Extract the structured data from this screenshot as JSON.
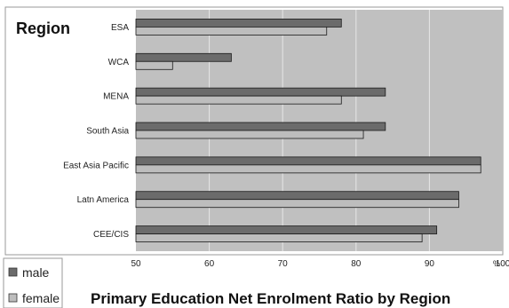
{
  "chart_data": {
    "type": "bar",
    "orientation": "horizontal",
    "title": "Primary Education Net Enrolment Ratio by Region",
    "ylabel": "Region",
    "unit": "%",
    "categories": [
      "ESA",
      "WCA",
      "MENA",
      "South Asia",
      "East Asia Pacific",
      "Latn America",
      "CEE/CIS"
    ],
    "series": [
      {
        "name": "male",
        "color": "#6b6b6b",
        "values": [
          78,
          63,
          84,
          84,
          97,
          94,
          91
        ]
      },
      {
        "name": "female",
        "color": "#bdbdbd",
        "values": [
          76,
          55,
          78,
          81,
          97,
          94,
          89
        ]
      }
    ],
    "xlim": [
      50,
      100
    ],
    "xticks": [
      "50",
      "60",
      "70",
      "80",
      "90",
      "100"
    ],
    "grid": true,
    "plot_background": "#c0c0c0",
    "legend_position": "bottom-left"
  }
}
